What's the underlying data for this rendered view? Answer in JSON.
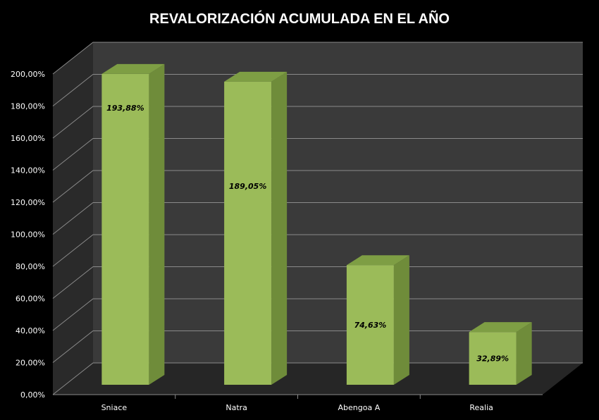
{
  "chart_data": {
    "type": "bar",
    "title": "REVALORIZACIÓN ACUMULADA EN EL AÑO",
    "xlabel": "",
    "ylabel": "",
    "categories": [
      "Sniace",
      "Natra",
      "Abengoa A",
      "Realia"
    ],
    "values": [
      193.88,
      189.05,
      74.63,
      32.89
    ],
    "data_labels": [
      "193,88%",
      "189,05%",
      "74,63%",
      "32,89%"
    ],
    "ylim": [
      0,
      200
    ],
    "yticks": [
      0,
      20,
      40,
      60,
      80,
      100,
      120,
      140,
      160,
      180,
      200
    ],
    "ytick_labels": [
      "0,00%",
      "20,00%",
      "40,00%",
      "60,00%",
      "80,00%",
      "100,00%",
      "120,00%",
      "140,00%",
      "160,00%",
      "180,00%",
      "200,00%"
    ],
    "grid": true,
    "legend": "none",
    "style": "3d-column",
    "colors": {
      "background": "#000000",
      "wall": "#3a3a3a",
      "side_wall": "#2a2a2a",
      "floor": "#262626",
      "gridline": "#8a8a8a",
      "bar_front": "#9bbb59",
      "bar_side": "#6f8c3a",
      "bar_top": "#7e9e44",
      "text": "#ffffff",
      "data_label": "#000000"
    }
  }
}
